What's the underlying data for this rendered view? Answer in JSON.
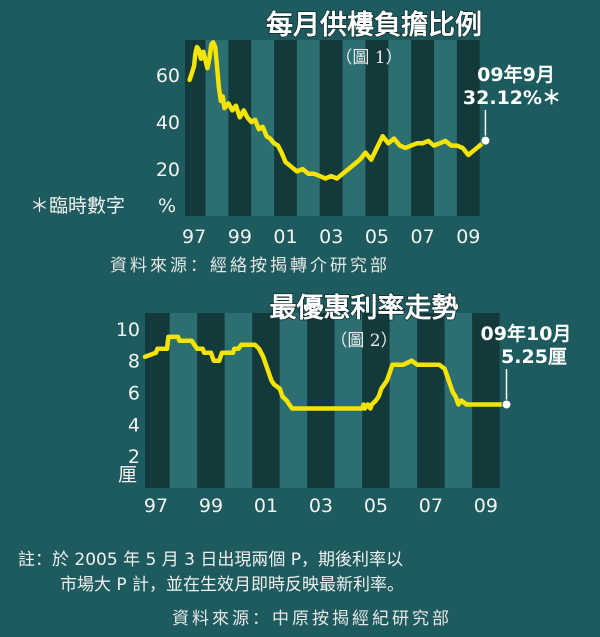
{
  "chart_data": [
    {
      "type": "line",
      "title": "每月供樓負擔比例",
      "subtitle": "（圖 1）",
      "unit_label": "%",
      "note_label": "＊臨時數字",
      "ylim": [
        0,
        75
      ],
      "xlim": [
        1996.6,
        2009.95
      ],
      "grid": "vertical bands",
      "y_ticks": [
        "20",
        "40",
        "60"
      ],
      "x_ticks": [
        "97",
        "99",
        "01",
        "03",
        "05",
        "07",
        "09"
      ],
      "annotation": {
        "line1": "09年9月",
        "line2": "32.12%＊"
      },
      "source": "資料來源：經絡按揭轉介研究部",
      "line_color": "#f5e400",
      "series": [
        {
          "x": [
            1996.8,
            1996.9,
            1997.0,
            1997.05,
            1997.12,
            1997.2,
            1997.3,
            1997.4,
            1997.5,
            1997.58,
            1997.67,
            1997.75,
            1997.83,
            1997.92,
            1998.0,
            1998.08,
            1998.17,
            1998.25,
            1998.33,
            1998.5,
            1998.67,
            1998.83,
            1999.0,
            1999.17,
            1999.33,
            1999.5,
            1999.67,
            1999.83,
            2000.0,
            2000.17,
            2000.33,
            2000.5,
            2000.67,
            2000.83,
            2001.0,
            2001.25,
            2001.5,
            2001.75,
            2002.0,
            2002.25,
            2002.5,
            2002.75,
            2003.0,
            2003.25,
            2003.5,
            2003.75,
            2004.0,
            2004.25,
            2004.5,
            2004.75,
            2005.0,
            2005.25,
            2005.5,
            2005.75,
            2006.0,
            2006.25,
            2006.5,
            2006.75,
            2007.0,
            2007.25,
            2007.5,
            2007.75,
            2008.0,
            2008.25,
            2008.5,
            2008.75,
            2009.0,
            2009.25,
            2009.5,
            2009.75
          ],
          "y": [
            58,
            61,
            64,
            69,
            72,
            71,
            67,
            70,
            66,
            63,
            67,
            73,
            74,
            72,
            64,
            55,
            49,
            51,
            46,
            48,
            45,
            47,
            42,
            45,
            42,
            40,
            41,
            37,
            38,
            34,
            33,
            31,
            30,
            27,
            23,
            21,
            19,
            20,
            18,
            18,
            17,
            16,
            17,
            16,
            18,
            20,
            22,
            24,
            27,
            24,
            29,
            34,
            31,
            33,
            30,
            29,
            30,
            31,
            31,
            32,
            30,
            31,
            32,
            30,
            30,
            29,
            26,
            28,
            30,
            32.12
          ]
        }
      ]
    },
    {
      "type": "line",
      "title": "最優惠利率走勢",
      "subtitle": "（圖 2）",
      "unit_label": "厘",
      "ylim": [
        0,
        11
      ],
      "xlim": [
        1996.6,
        2009.95
      ],
      "grid": "vertical bands",
      "y_ticks": [
        "2",
        "4",
        "6",
        "8",
        "10"
      ],
      "x_ticks": [
        "97",
        "99",
        "01",
        "03",
        "05",
        "07",
        "09"
      ],
      "annotation": {
        "line1": "09年10月",
        "line2": "5.25厘"
      },
      "line_color": "#f5e400",
      "series": [
        {
          "x": [
            1996.6,
            1997.0,
            1997.05,
            1997.4,
            1997.45,
            1997.8,
            1997.85,
            1998.3,
            1998.5,
            1998.7,
            1998.75,
            1999.0,
            1999.1,
            1999.3,
            1999.4,
            1999.8,
            1999.85,
            2000.0,
            2000.1,
            2000.6,
            2000.75,
            2000.9,
            2001.0,
            2001.1,
            2001.2,
            2001.3,
            2001.5,
            2001.6,
            2001.75,
            2001.85,
            2001.95,
            2002.1,
            2004.5,
            2004.55,
            2004.6,
            2004.7,
            2004.8,
            2004.85,
            2005.0,
            2005.1,
            2005.2,
            2005.3,
            2005.4,
            2005.5,
            2005.6,
            2006.0,
            2006.3,
            2006.5,
            2007.3,
            2007.5,
            2007.6,
            2007.7,
            2007.8,
            2007.9,
            2008.0,
            2008.1,
            2008.3,
            2008.5,
            2008.7,
            2008.9,
            2009.0,
            2009.75
          ],
          "y": [
            8.25,
            8.5,
            8.75,
            8.75,
            9.5,
            9.5,
            9.25,
            9.25,
            8.75,
            8.75,
            8.5,
            8.5,
            8.0,
            8.0,
            8.5,
            8.5,
            8.75,
            8.75,
            9.0,
            9.0,
            8.75,
            8.25,
            7.75,
            7.25,
            6.75,
            6.5,
            6.25,
            5.75,
            5.5,
            5.25,
            5.0,
            5.0,
            5.0,
            5.25,
            5.0,
            5.25,
            5.0,
            5.25,
            5.5,
            5.75,
            6.25,
            6.5,
            6.75,
            7.25,
            7.75,
            7.75,
            8.0,
            7.75,
            7.75,
            7.5,
            7.0,
            6.5,
            6.0,
            5.75,
            5.25,
            5.5,
            5.25,
            5.25,
            5.25,
            5.25,
            5.25,
            5.25
          ]
        }
      ]
    }
  ],
  "footnote": {
    "line1": "註：於 2005 年 5 月 3 日出現兩個 P，期後利率以",
    "line2": "市場大 P 計，並在生效月即時反映最新利率。"
  },
  "source2": "資料來源：中原按揭經紀研究部"
}
